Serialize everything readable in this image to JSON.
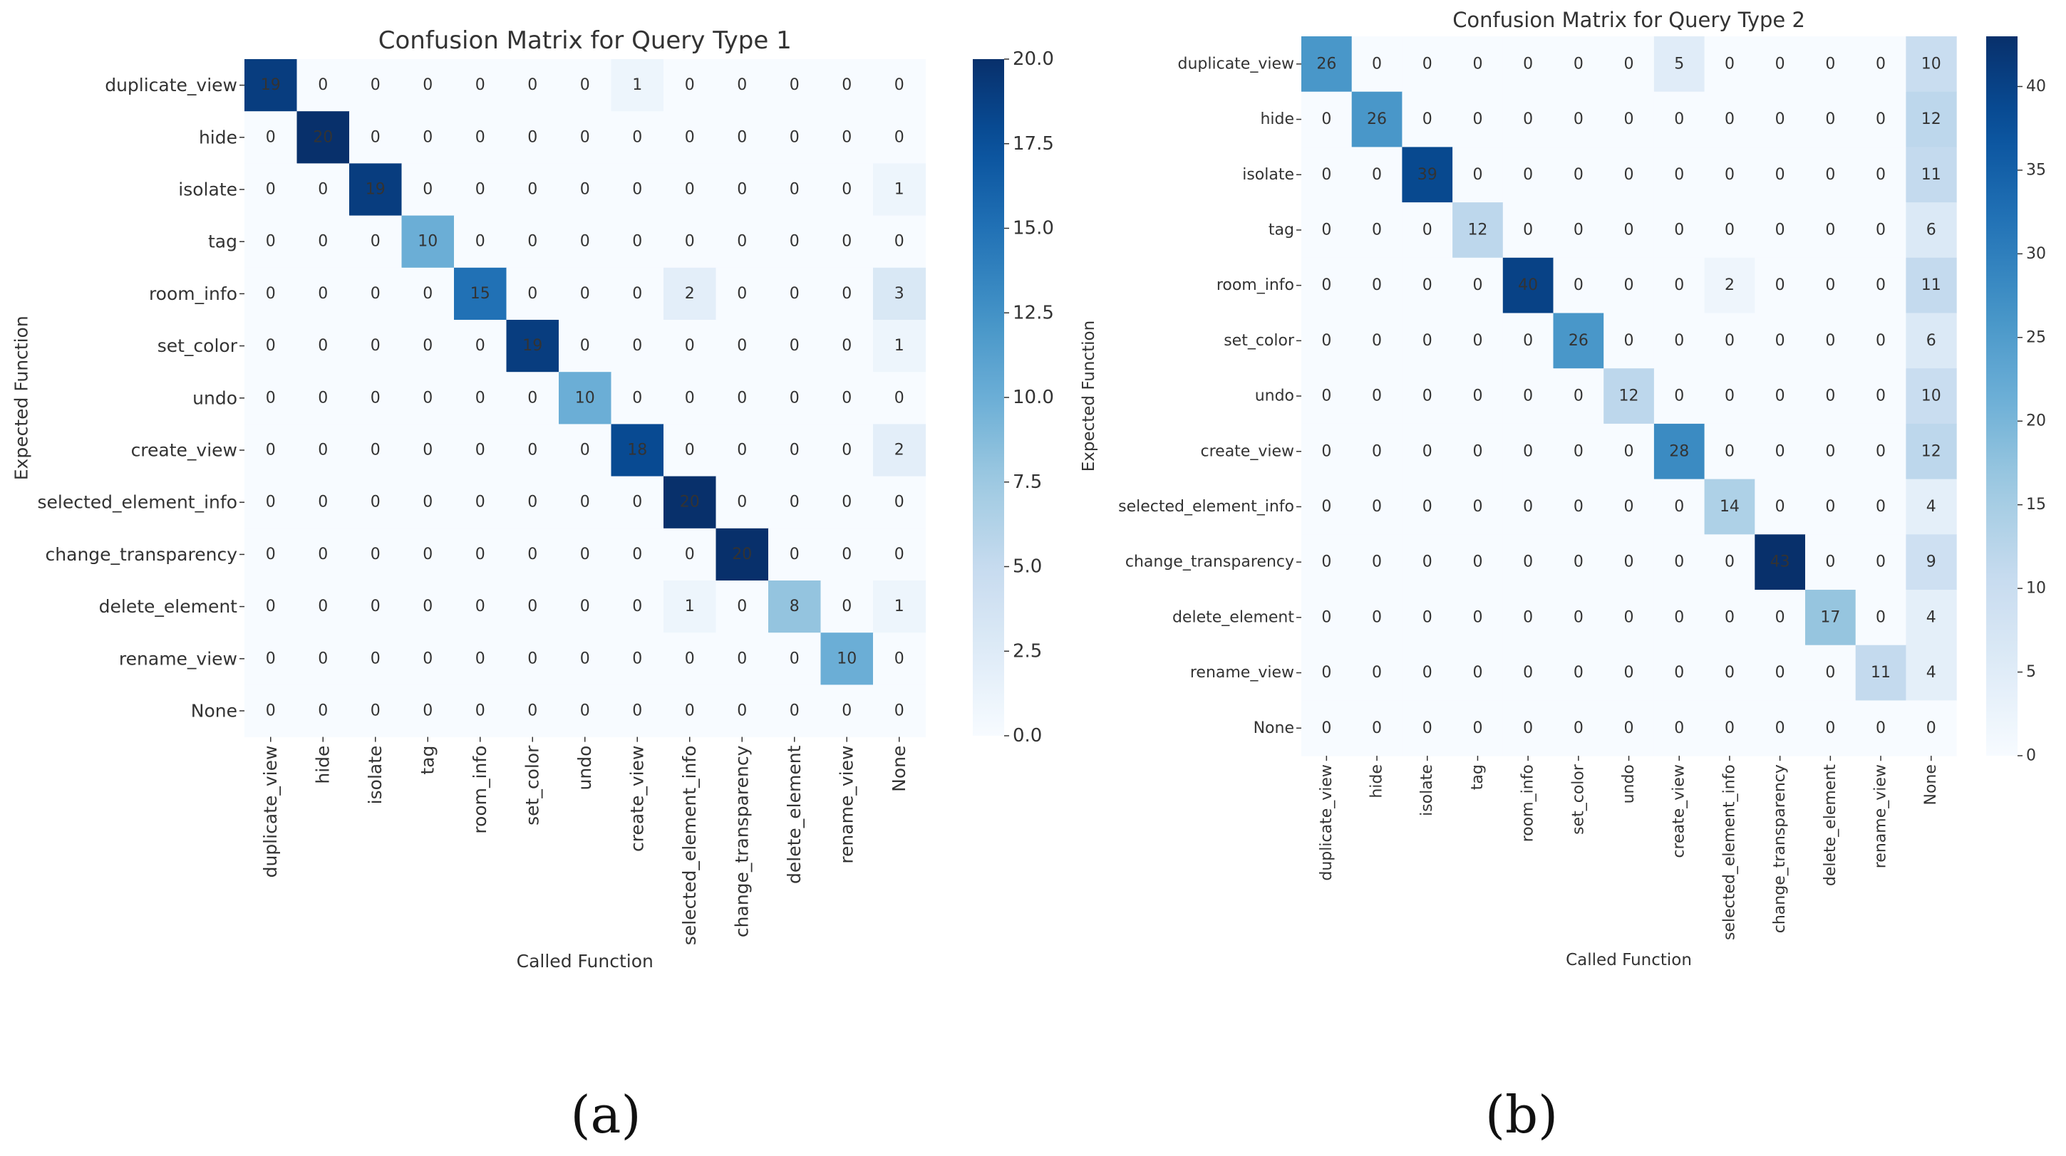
{
  "chart_data": [
    {
      "type": "heatmap",
      "title": "Confusion Matrix for Query Type 1",
      "xlabel": "Called Function",
      "ylabel": "Expected Function",
      "caption": "(a)",
      "x_categories": [
        "duplicate_view",
        "hide",
        "isolate",
        "tag",
        "room_info",
        "set_color",
        "undo",
        "create_view",
        "selected_element_info",
        "change_transparency",
        "delete_element",
        "rename_view",
        "None"
      ],
      "y_categories": [
        "duplicate_view",
        "hide",
        "isolate",
        "tag",
        "room_info",
        "set_color",
        "undo",
        "create_view",
        "selected_element_info",
        "change_transparency",
        "delete_element",
        "rename_view",
        "None"
      ],
      "values": [
        [
          19,
          0,
          0,
          0,
          0,
          0,
          0,
          1,
          0,
          0,
          0,
          0,
          0
        ],
        [
          0,
          20,
          0,
          0,
          0,
          0,
          0,
          0,
          0,
          0,
          0,
          0,
          0
        ],
        [
          0,
          0,
          19,
          0,
          0,
          0,
          0,
          0,
          0,
          0,
          0,
          0,
          1
        ],
        [
          0,
          0,
          0,
          10,
          0,
          0,
          0,
          0,
          0,
          0,
          0,
          0,
          0
        ],
        [
          0,
          0,
          0,
          0,
          15,
          0,
          0,
          0,
          2,
          0,
          0,
          0,
          3
        ],
        [
          0,
          0,
          0,
          0,
          0,
          19,
          0,
          0,
          0,
          0,
          0,
          0,
          1
        ],
        [
          0,
          0,
          0,
          0,
          0,
          0,
          10,
          0,
          0,
          0,
          0,
          0,
          0
        ],
        [
          0,
          0,
          0,
          0,
          0,
          0,
          0,
          18,
          0,
          0,
          0,
          0,
          2
        ],
        [
          0,
          0,
          0,
          0,
          0,
          0,
          0,
          0,
          20,
          0,
          0,
          0,
          0
        ],
        [
          0,
          0,
          0,
          0,
          0,
          0,
          0,
          0,
          0,
          20,
          0,
          0,
          0
        ],
        [
          0,
          0,
          0,
          0,
          0,
          0,
          0,
          0,
          1,
          0,
          8,
          0,
          1
        ],
        [
          0,
          0,
          0,
          0,
          0,
          0,
          0,
          0,
          0,
          0,
          0,
          10,
          0
        ],
        [
          0,
          0,
          0,
          0,
          0,
          0,
          0,
          0,
          0,
          0,
          0,
          0,
          0
        ]
      ],
      "vmin": 0,
      "vmax": 20,
      "colorbar_ticks": [
        "0.0",
        "2.5",
        "5.0",
        "7.5",
        "10.0",
        "12.5",
        "15.0",
        "17.5",
        "20.0"
      ],
      "colormap": "Blues"
    },
    {
      "type": "heatmap",
      "title": "Confusion Matrix for Query Type 2",
      "xlabel": "Called Function",
      "ylabel": "Expected Function",
      "caption": "(b)",
      "x_categories": [
        "duplicate_view",
        "hide",
        "isolate",
        "tag",
        "room_info",
        "set_color",
        "undo",
        "create_view",
        "selected_element_info",
        "change_transparency",
        "delete_element",
        "rename_view",
        "None"
      ],
      "y_categories": [
        "duplicate_view",
        "hide",
        "isolate",
        "tag",
        "room_info",
        "set_color",
        "undo",
        "create_view",
        "selected_element_info",
        "change_transparency",
        "delete_element",
        "rename_view",
        "None"
      ],
      "values": [
        [
          26,
          0,
          0,
          0,
          0,
          0,
          0,
          5,
          0,
          0,
          0,
          0,
          10
        ],
        [
          0,
          26,
          0,
          0,
          0,
          0,
          0,
          0,
          0,
          0,
          0,
          0,
          12
        ],
        [
          0,
          0,
          39,
          0,
          0,
          0,
          0,
          0,
          0,
          0,
          0,
          0,
          11
        ],
        [
          0,
          0,
          0,
          12,
          0,
          0,
          0,
          0,
          0,
          0,
          0,
          0,
          6
        ],
        [
          0,
          0,
          0,
          0,
          40,
          0,
          0,
          0,
          2,
          0,
          0,
          0,
          11
        ],
        [
          0,
          0,
          0,
          0,
          0,
          26,
          0,
          0,
          0,
          0,
          0,
          0,
          6
        ],
        [
          0,
          0,
          0,
          0,
          0,
          0,
          12,
          0,
          0,
          0,
          0,
          0,
          10
        ],
        [
          0,
          0,
          0,
          0,
          0,
          0,
          0,
          28,
          0,
          0,
          0,
          0,
          12
        ],
        [
          0,
          0,
          0,
          0,
          0,
          0,
          0,
          0,
          14,
          0,
          0,
          0,
          4
        ],
        [
          0,
          0,
          0,
          0,
          0,
          0,
          0,
          0,
          0,
          43,
          0,
          0,
          9
        ],
        [
          0,
          0,
          0,
          0,
          0,
          0,
          0,
          0,
          0,
          0,
          17,
          0,
          4
        ],
        [
          0,
          0,
          0,
          0,
          0,
          0,
          0,
          0,
          0,
          0,
          0,
          11,
          4
        ],
        [
          0,
          0,
          0,
          0,
          0,
          0,
          0,
          0,
          0,
          0,
          0,
          0,
          0
        ]
      ],
      "vmin": 0,
      "vmax": 43,
      "colorbar_ticks": [
        "0",
        "5",
        "10",
        "15",
        "20",
        "25",
        "30",
        "35",
        "40"
      ],
      "colormap": "Blues"
    }
  ]
}
